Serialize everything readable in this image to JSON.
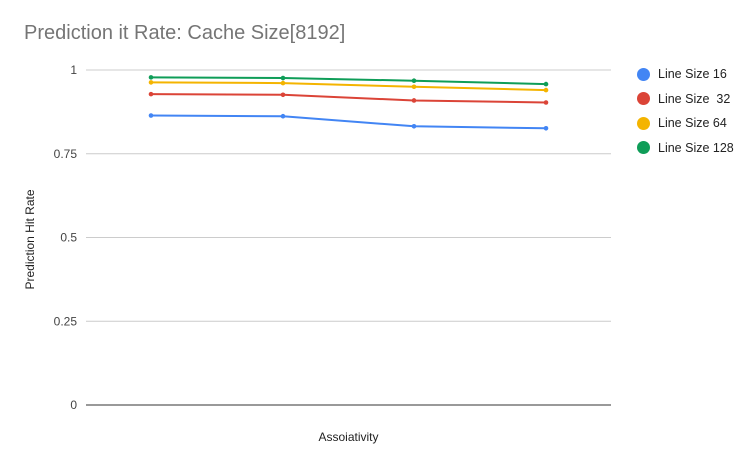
{
  "chart_data": {
    "type": "line",
    "title": "Prediction it Rate: Cache Size[8192]",
    "xlabel": "Assoiativity",
    "ylabel": "Prediction Hit Rate",
    "categories": [
      "",
      "",
      "",
      ""
    ],
    "ylim": [
      0,
      1
    ],
    "yticks": [
      "0",
      "0.25",
      "0.5",
      "0.75",
      "1"
    ],
    "grid": true,
    "legend_position": "right",
    "series": [
      {
        "name": "Line Size 16",
        "color": "#4285f4",
        "values": [
          0.864,
          0.862,
          0.832,
          0.826
        ]
      },
      {
        "name": "Line Size  32",
        "color": "#db4437",
        "values": [
          0.928,
          0.926,
          0.909,
          0.903
        ]
      },
      {
        "name": "Line Size 64",
        "color": "#f4b400",
        "values": [
          0.963,
          0.961,
          0.95,
          0.94
        ]
      },
      {
        "name": "Line Size 128",
        "color": "#0f9d58",
        "values": [
          0.978,
          0.976,
          0.968,
          0.958
        ]
      }
    ]
  }
}
